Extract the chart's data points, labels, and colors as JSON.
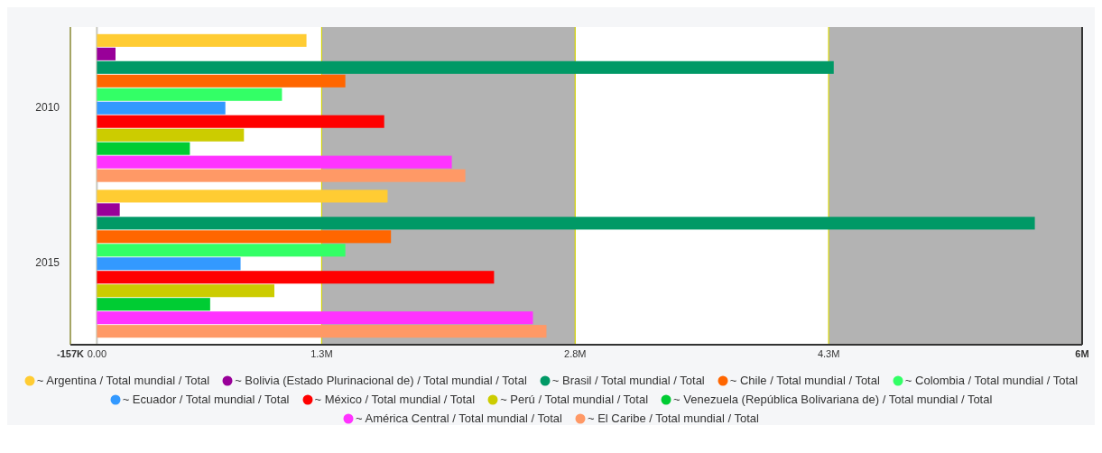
{
  "chart_data": {
    "type": "bar",
    "orientation": "horizontal",
    "categories": [
      "2010",
      "2015"
    ],
    "xlim": [
      -157000,
      5830000
    ],
    "xticks": [
      {
        "value": -157000,
        "label": "-157K"
      },
      {
        "value": 0,
        "label": "0.00"
      },
      {
        "value": 1330000,
        "label": "1.3M"
      },
      {
        "value": 2830000,
        "label": "2.8M"
      },
      {
        "value": 4330000,
        "label": "4.3M"
      },
      {
        "value": 5830000,
        "label": "6M"
      }
    ],
    "grid": "x",
    "legend": "bottom",
    "bands": [
      {
        "axis": "x",
        "from": 1330000,
        "to": 2830000,
        "color": "#b3b3b3"
      },
      {
        "axis": "x",
        "from": 4330000,
        "to": 5830000,
        "color": "#b3b3b3"
      }
    ],
    "series": [
      {
        "name": "~ Argentina / Total mundial / Total",
        "color": "#ffcc33",
        "values": [
          1240000,
          1720000
        ]
      },
      {
        "name": "~ Bolivia (Estado Plurinacional de) / Total mundial / Total",
        "color": "#990099",
        "values": [
          110000,
          135000
        ]
      },
      {
        "name": "~ Brasil / Total mundial / Total",
        "color": "#009966",
        "values": [
          4360000,
          5550000
        ]
      },
      {
        "name": "~ Chile / Total mundial / Total",
        "color": "#ff6600",
        "values": [
          1470000,
          1740000
        ]
      },
      {
        "name": "~ Colombia / Total mundial / Total",
        "color": "#33ff66",
        "values": [
          1095000,
          1470000
        ]
      },
      {
        "name": "~ Ecuador / Total mundial / Total",
        "color": "#3399ff",
        "values": [
          760000,
          850000
        ]
      },
      {
        "name": "~ México / Total mundial / Total",
        "color": "#ff0000",
        "values": [
          1700000,
          2350000
        ]
      },
      {
        "name": "~ Perú / Total mundial / Total",
        "color": "#cccc00",
        "values": [
          870000,
          1050000
        ]
      },
      {
        "name": "~ Venezuela (República Bolivariana de) / Total mundial / Total",
        "color": "#00cc33",
        "values": [
          550000,
          670000
        ]
      },
      {
        "name": "~ América Central / Total mundial / Total",
        "color": "#ff33ff",
        "values": [
          2100000,
          2580000
        ]
      },
      {
        "name": "~ El Caribe / Total mundial / Total",
        "color": "#ff9966",
        "values": [
          2180000,
          2660000
        ]
      }
    ]
  }
}
